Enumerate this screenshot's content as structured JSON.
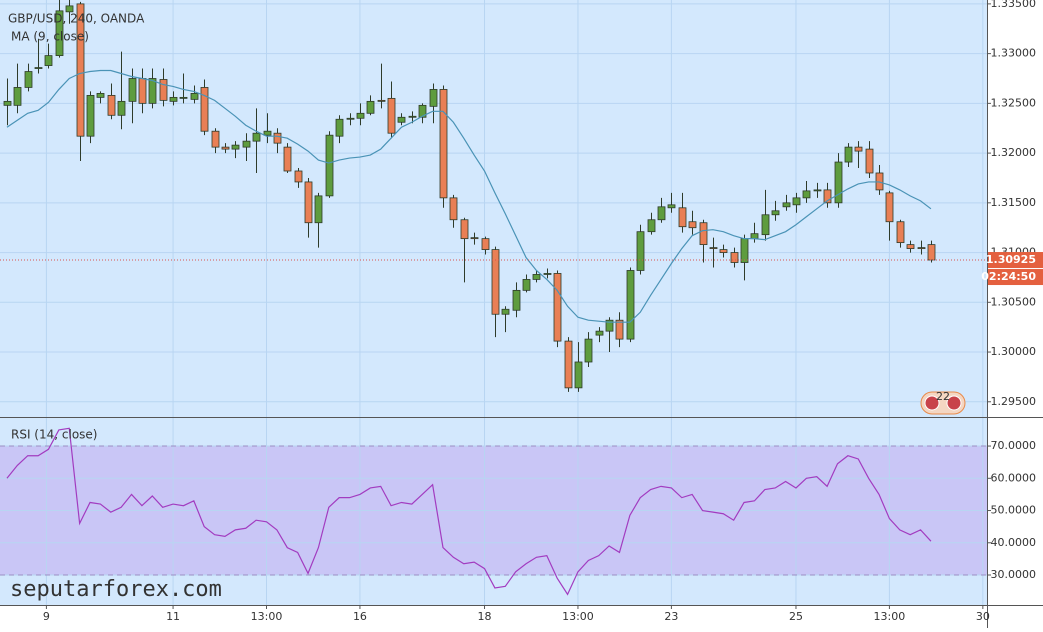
{
  "watermark": "seputarforex.com",
  "badge": "22",
  "chart_data": [
    {
      "type": "candlestick",
      "title": "GBP/USD, 240, OANDA",
      "open": [
        1.3248,
        1.3248,
        1.3266,
        1.3285,
        1.3288,
        1.3298,
        1.3342,
        1.335,
        1.3217,
        1.3256,
        1.3258,
        1.3238,
        1.3252,
        1.3275,
        1.325,
        1.3274,
        1.3252,
        1.3255,
        1.3254,
        1.3266,
        1.3222,
        1.3206,
        1.3204,
        1.3206,
        1.3212,
        1.3218,
        1.322,
        1.3206,
        1.3182,
        1.3171,
        1.313,
        1.3157,
        1.3217,
        1.3234,
        1.3235,
        1.324,
        1.3253,
        1.3255,
        1.3231,
        1.3236,
        1.3236,
        1.3247,
        1.3264,
        1.3155,
        1.3133,
        1.3115,
        1.3114,
        1.3103,
        1.3038,
        1.3042,
        1.3062,
        1.3073,
        1.3078,
        1.3079,
        1.3011,
        1.2964,
        1.299,
        1.3017,
        1.3021,
        1.3032,
        1.3013,
        1.3082,
        1.3121,
        1.3133,
        1.3145,
        1.3145,
        1.3131,
        1.313,
        1.3105,
        1.3103,
        1.31,
        1.309,
        1.3114,
        1.3118,
        1.3138,
        1.3146,
        1.3148,
        1.3155,
        1.3162,
        1.3163,
        1.315,
        1.3191,
        1.3206,
        1.3204,
        1.318,
        1.316,
        1.3131,
        1.3108,
        1.3105,
        1.3108
      ],
      "high": [
        1.3275,
        1.329,
        1.329,
        1.3315,
        1.331,
        1.3355,
        1.336,
        1.3352,
        1.3262,
        1.3262,
        1.327,
        1.3302,
        1.3285,
        1.3285,
        1.3285,
        1.3285,
        1.3262,
        1.328,
        1.3268,
        1.3274,
        1.3225,
        1.321,
        1.3212,
        1.322,
        1.3245,
        1.324,
        1.3225,
        1.321,
        1.3185,
        1.3175,
        1.316,
        1.3222,
        1.3238,
        1.324,
        1.325,
        1.3258,
        1.329,
        1.3272,
        1.324,
        1.3242,
        1.325,
        1.327,
        1.3268,
        1.3158,
        1.3135,
        1.312,
        1.3116,
        1.3106,
        1.3046,
        1.307,
        1.3078,
        1.3082,
        1.3084,
        1.3082,
        1.3015,
        1.301,
        1.302,
        1.3025,
        1.3035,
        1.304,
        1.3085,
        1.3128,
        1.314,
        1.3155,
        1.316,
        1.316,
        1.3142,
        1.3133,
        1.3115,
        1.3108,
        1.3105,
        1.3118,
        1.313,
        1.3163,
        1.3152,
        1.3158,
        1.316,
        1.3172,
        1.317,
        1.317,
        1.32,
        1.321,
        1.3212,
        1.3212,
        1.3188,
        1.3162,
        1.3133,
        1.3112,
        1.3112,
        1.3112
      ],
      "low": [
        1.3228,
        1.324,
        1.3262,
        1.328,
        1.3285,
        1.3296,
        1.333,
        1.3192,
        1.321,
        1.325,
        1.3234,
        1.3224,
        1.323,
        1.324,
        1.3245,
        1.3247,
        1.3248,
        1.325,
        1.325,
        1.3218,
        1.32,
        1.32,
        1.3195,
        1.3192,
        1.318,
        1.321,
        1.32,
        1.318,
        1.3165,
        1.3115,
        1.3105,
        1.3155,
        1.321,
        1.3228,
        1.3228,
        1.3238,
        1.3245,
        1.3215,
        1.3228,
        1.323,
        1.323,
        1.323,
        1.3145,
        1.3125,
        1.307,
        1.3108,
        1.3098,
        1.3015,
        1.302,
        1.3035,
        1.306,
        1.307,
        1.3074,
        1.3005,
        1.296,
        1.296,
        1.2985,
        1.301,
        1.3,
        1.3005,
        1.301,
        1.3078,
        1.3118,
        1.313,
        1.314,
        1.312,
        1.3118,
        1.309,
        1.3085,
        1.3095,
        1.3085,
        1.3072,
        1.311,
        1.3112,
        1.3132,
        1.3142,
        1.314,
        1.315,
        1.3155,
        1.3145,
        1.3145,
        1.3186,
        1.3185,
        1.3175,
        1.3158,
        1.3112,
        1.3105,
        1.31,
        1.3098,
        1.309
      ],
      "close": [
        1.3252,
        1.3266,
        1.3282,
        1.3286,
        1.3298,
        1.3343,
        1.3348,
        1.3217,
        1.3258,
        1.326,
        1.3238,
        1.3252,
        1.3275,
        1.325,
        1.3275,
        1.3253,
        1.3256,
        1.3256,
        1.326,
        1.3222,
        1.3206,
        1.3204,
        1.3208,
        1.3212,
        1.322,
        1.3222,
        1.321,
        1.3182,
        1.3171,
        1.313,
        1.3157,
        1.3218,
        1.3234,
        1.3235,
        1.324,
        1.3252,
        1.3252,
        1.322,
        1.3236,
        1.3237,
        1.3248,
        1.3264,
        1.3155,
        1.3133,
        1.3114,
        1.3114,
        1.3103,
        1.3038,
        1.3043,
        1.3062,
        1.3073,
        1.3078,
        1.3079,
        1.3011,
        1.2964,
        1.299,
        1.3013,
        1.3021,
        1.3032,
        1.3013,
        1.3082,
        1.3121,
        1.3133,
        1.3146,
        1.3148,
        1.3126,
        1.3125,
        1.3108,
        1.3104,
        1.31,
        1.309,
        1.3114,
        1.3119,
        1.3138,
        1.3142,
        1.315,
        1.3155,
        1.3162,
        1.3163,
        1.315,
        1.3191,
        1.3206,
        1.3202,
        1.318,
        1.3163,
        1.3131,
        1.311,
        1.3104,
        1.3104,
        1.30925
      ],
      "up_color": "#5e9c3e",
      "down_color": "#e97f55",
      "border_color": "#2e3b2a",
      "series": [
        {
          "name": "MA (9, close)",
          "color": "#4a93b6",
          "values": [
            1.3226,
            1.3233,
            1.324,
            1.3243,
            1.3251,
            1.3264,
            1.3275,
            1.328,
            1.3282,
            1.3283,
            1.3283,
            1.328,
            1.3277,
            1.3275,
            1.3273,
            1.3269,
            1.3267,
            1.3264,
            1.3262,
            1.3258,
            1.3253,
            1.3245,
            1.3237,
            1.3228,
            1.3222,
            1.3217,
            1.3217,
            1.3215,
            1.3209,
            1.3202,
            1.3193,
            1.319,
            1.3193,
            1.3195,
            1.3196,
            1.3198,
            1.3204,
            1.3215,
            1.3226,
            1.3231,
            1.3237,
            1.3242,
            1.3242,
            1.3231,
            1.3215,
            1.3198,
            1.3182,
            1.316,
            1.3139,
            1.3117,
            1.3095,
            1.3082,
            1.3073,
            1.3062,
            1.3046,
            1.3035,
            1.3032,
            1.3031,
            1.303,
            1.303,
            1.303,
            1.304,
            1.3057,
            1.3073,
            1.3089,
            1.3104,
            1.3117,
            1.3122,
            1.3123,
            1.3121,
            1.3117,
            1.3114,
            1.3114,
            1.3113,
            1.3117,
            1.3121,
            1.3128,
            1.3136,
            1.3144,
            1.3152,
            1.3158,
            1.3164,
            1.3169,
            1.3171,
            1.3171,
            1.3168,
            1.3163,
            1.3157,
            1.3152,
            1.3144
          ]
        }
      ],
      "last_price": {
        "value": 1.30925,
        "label": "1.30925"
      },
      "countdown": "02:24:50",
      "xlim": [
        -0.67,
        94.4
      ],
      "ylim": [
        1.29347,
        1.33539
      ],
      "yticks": [
        {
          "value": 1.295,
          "label": "1.29500"
        },
        {
          "value": 1.3,
          "label": "1.30000"
        },
        {
          "value": 1.305,
          "label": "1.30500"
        },
        {
          "value": 1.31,
          "label": "1.31000"
        },
        {
          "value": 1.315,
          "label": "1.31500"
        },
        {
          "value": 1.32,
          "label": "1.32000"
        },
        {
          "value": 1.325,
          "label": "1.32500"
        },
        {
          "value": 1.33,
          "label": "1.33000"
        },
        {
          "value": 1.335,
          "label": "1.33500"
        }
      ],
      "grid": true
    },
    {
      "type": "line",
      "series": [
        {
          "name": "RSI (14, close)",
          "color": "#a23cc0",
          "values": [
            60,
            64,
            67,
            67,
            69,
            75,
            75.5,
            46,
            52.5,
            52,
            49.5,
            51,
            55,
            51.5,
            54.5,
            51,
            52,
            51.5,
            53,
            45,
            42.5,
            42,
            44,
            44.5,
            47,
            46.5,
            44,
            38.5,
            37,
            30.5,
            38.5,
            51,
            54,
            54,
            55,
            57,
            57.5,
            51.5,
            52.5,
            52,
            55,
            58,
            38.5,
            35.5,
            33.5,
            34,
            32,
            26,
            26.5,
            31,
            33.5,
            35.5,
            36,
            29,
            24,
            31,
            34.5,
            36,
            39,
            37,
            48.5,
            54,
            56.5,
            57.5,
            57,
            54,
            55,
            50,
            49.5,
            49,
            47,
            52.5,
            53,
            56.5,
            57,
            59,
            57,
            60,
            60.5,
            57.5,
            64.5,
            67,
            66,
            60,
            55,
            47.5,
            44,
            42.5,
            44,
            40.5
          ]
        }
      ],
      "band": [
        30,
        70
      ],
      "band_color": "#c9c6f6",
      "xlim": [
        -0.67,
        94.4
      ],
      "ylim": [
        20.7,
        78.7
      ],
      "yticks": [
        {
          "value": 30,
          "label": "30.0000"
        },
        {
          "value": 40,
          "label": "40.0000"
        },
        {
          "value": 50,
          "label": "50.0000"
        },
        {
          "value": 60,
          "label": "60.0000"
        },
        {
          "value": 70,
          "label": "70.0000"
        }
      ],
      "xticks": [
        {
          "value": 3.8,
          "label": "9"
        },
        {
          "value": 16,
          "label": "11"
        },
        {
          "value": 25,
          "label": "13:00"
        },
        {
          "value": 34,
          "label": "16"
        },
        {
          "value": 46,
          "label": "18"
        },
        {
          "value": 55,
          "label": "13:00"
        },
        {
          "value": 64,
          "label": "23"
        },
        {
          "value": 76,
          "label": "25"
        },
        {
          "value": 85,
          "label": "13:00"
        },
        {
          "value": 94,
          "label": "30"
        }
      ],
      "grid": true
    }
  ]
}
